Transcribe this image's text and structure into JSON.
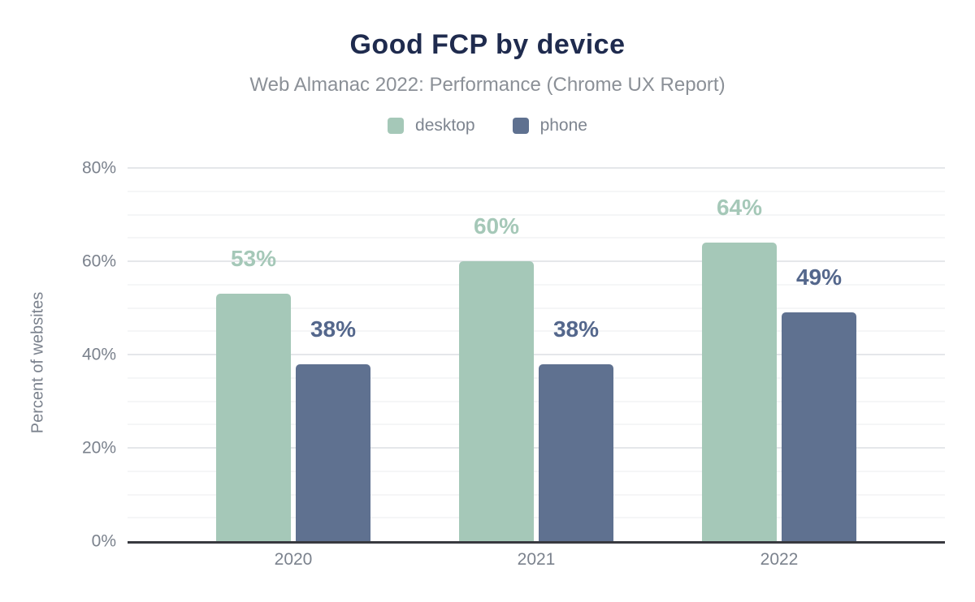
{
  "header": {
    "title": "Good FCP by device",
    "subtitle": "Web Almanac 2022: Performance (Chrome UX Report)"
  },
  "legend": [
    {
      "label": "desktop",
      "color": "#a5c8b8"
    },
    {
      "label": "phone",
      "color": "#5f7190"
    }
  ],
  "chart_data": {
    "type": "bar",
    "title": "Good FCP by device",
    "subtitle": "Web Almanac 2022: Performance (Chrome UX Report)",
    "categories": [
      "2020",
      "2021",
      "2022"
    ],
    "series": [
      {
        "name": "desktop",
        "color": "#a5c8b8",
        "label_color": "#a5c8b8",
        "values": [
          53,
          60,
          64
        ]
      },
      {
        "name": "phone",
        "color": "#5f7190",
        "label_color": "#54678c",
        "values": [
          38,
          38,
          49
        ]
      }
    ],
    "xlabel": "",
    "ylabel": "Percent of websites",
    "ylim": [
      0,
      80
    ],
    "yticks": [
      0,
      20,
      40,
      60,
      80
    ],
    "minor_grid_step": 5,
    "major_grid_step": 20,
    "ytick_format": "{v}%",
    "value_label_format": "{v}%",
    "grid": true,
    "legend_position": "top"
  }
}
